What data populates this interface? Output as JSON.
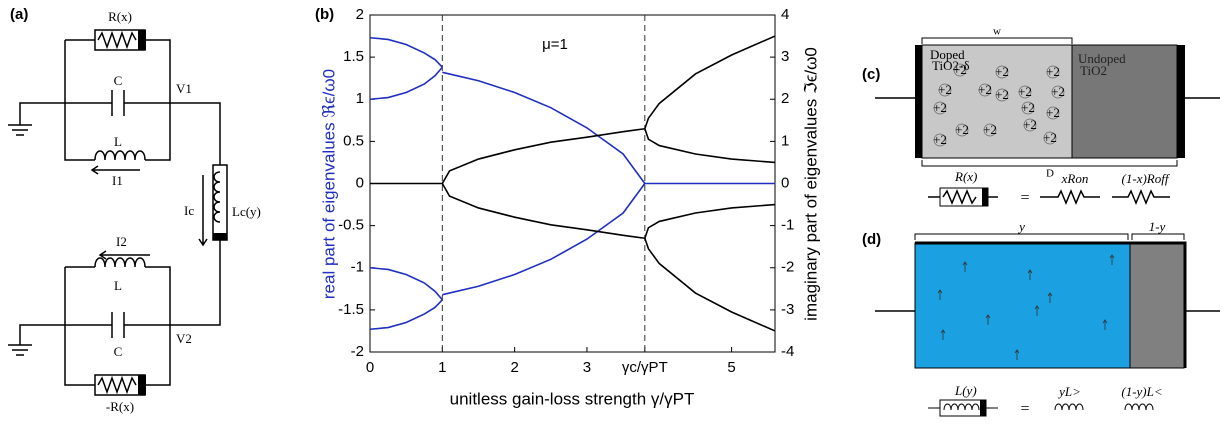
{
  "chart_data": {
    "type": "line",
    "panel_label": "(b)",
    "annotation": "μ=1",
    "xlabel": "unitless gain-loss strength γ/γPT",
    "ylabel": "real part of eigenvalues ℜϵ/ω0",
    "y2label": "imaginary part of eigenvalues ℑϵ/ω0",
    "xlim": [
      0,
      5.6
    ],
    "ylim": [
      -2,
      2
    ],
    "y2lim": [
      -4,
      4
    ],
    "xticks": [
      0,
      1,
      2,
      3,
      {
        "value": 3.8,
        "label": "γc/γPT"
      },
      5
    ],
    "yticks": [
      -2,
      -1.5,
      -1,
      -0.5,
      0,
      0.5,
      1,
      1.5,
      2
    ],
    "y2ticks": [
      -4,
      -3,
      -2,
      -1,
      0,
      1,
      2,
      3,
      4
    ],
    "vlines": [
      1,
      3.8
    ],
    "series": [
      {
        "color": "#1f2fbf",
        "axis": "y",
        "x": [
          0,
          0.25,
          0.5,
          0.75,
          0.9,
          1
        ],
        "values": [
          1.73,
          1.71,
          1.65,
          1.55,
          1.47,
          1.38
        ]
      },
      {
        "color": "#1f2fbf",
        "axis": "y",
        "x": [
          0,
          0.25,
          0.5,
          0.75,
          0.9,
          1
        ],
        "values": [
          1,
          1.02,
          1.08,
          1.18,
          1.28,
          1.38
        ]
      },
      {
        "color": "#1f2fbf",
        "axis": "y",
        "x": [
          1,
          1.5,
          2,
          2.5,
          3,
          3.5,
          3.8
        ],
        "values": [
          1.32,
          1.22,
          1.08,
          0.9,
          0.66,
          0.35,
          0
        ]
      },
      {
        "color": "#1f2fbf",
        "axis": "y",
        "x": [
          0,
          0.25,
          0.5,
          0.75,
          0.9,
          1
        ],
        "values": [
          -1.73,
          -1.71,
          -1.65,
          -1.55,
          -1.47,
          -1.38
        ]
      },
      {
        "color": "#1f2fbf",
        "axis": "y",
        "x": [
          0,
          0.25,
          0.5,
          0.75,
          0.9,
          1
        ],
        "values": [
          -1,
          -1.02,
          -1.08,
          -1.18,
          -1.28,
          -1.38
        ]
      },
      {
        "color": "#1f2fbf",
        "axis": "y",
        "x": [
          1,
          1.5,
          2,
          2.5,
          3,
          3.5,
          3.8
        ],
        "values": [
          -1.32,
          -1.22,
          -1.08,
          -0.9,
          -0.66,
          -0.35,
          0
        ]
      },
      {
        "color": "#1f2fbf",
        "axis": "y",
        "x": [
          3.8,
          5.6
        ],
        "values": [
          0,
          0
        ]
      },
      {
        "color": "#000000",
        "axis": "y2",
        "x": [
          0,
          1
        ],
        "values": [
          0,
          0
        ]
      },
      {
        "color": "#000000",
        "axis": "y2",
        "x": [
          1,
          1.1,
          1.5,
          2,
          2.5,
          3,
          3.5,
          3.8
        ],
        "values": [
          0,
          0.3,
          0.58,
          0.8,
          0.98,
          1.1,
          1.23,
          1.3
        ]
      },
      {
        "color": "#000000",
        "axis": "y2",
        "x": [
          1,
          1.1,
          1.5,
          2,
          2.5,
          3,
          3.5,
          3.8
        ],
        "values": [
          0,
          -0.3,
          -0.58,
          -0.8,
          -0.98,
          -1.1,
          -1.23,
          -1.3
        ]
      },
      {
        "color": "#000000",
        "axis": "y2",
        "x": [
          3.8,
          3.85,
          4,
          4.5,
          5,
          5.6
        ],
        "values": [
          1.3,
          1.55,
          1.9,
          2.6,
          3.05,
          3.5
        ]
      },
      {
        "color": "#000000",
        "axis": "y2",
        "x": [
          3.8,
          3.85,
          4,
          4.5,
          5,
          5.6
        ],
        "values": [
          1.3,
          1.05,
          0.9,
          0.7,
          0.58,
          0.5
        ]
      },
      {
        "color": "#000000",
        "axis": "y2",
        "x": [
          3.8,
          3.85,
          4,
          4.5,
          5,
          5.6
        ],
        "values": [
          -1.3,
          -1.55,
          -1.9,
          -2.6,
          -3.05,
          -3.5
        ]
      },
      {
        "color": "#000000",
        "axis": "y2",
        "x": [
          3.8,
          3.85,
          4,
          4.5,
          5,
          5.6
        ],
        "values": [
          -1.3,
          -1.05,
          -0.9,
          -0.7,
          -0.58,
          -0.5
        ]
      }
    ]
  },
  "circuit": {
    "panel_label": "(a)",
    "r_top": "R(x)",
    "c_top": "C",
    "v1": "V1",
    "l_top": "L",
    "i1": "I1",
    "ic": "Ic",
    "lc": "Lc(y)",
    "i2": "I2",
    "l_bottom": "L",
    "c_bottom": "C",
    "v2": "V2",
    "r_bottom": "-R(x)"
  },
  "memristor": {
    "panel_label": "(c)",
    "w": "w",
    "doped": "Doped",
    "doped_formula": "TiO2-δ",
    "ion": "+2",
    "undoped": "Undoped",
    "undoped_formula": "TiO2",
    "d": "D",
    "r": "R(x)",
    "equals": "=",
    "r_on": "xRon",
    "r_off": "(1-x)Roff"
  },
  "meminductor": {
    "panel_label": "(d)",
    "y": "y",
    "one_minus_y": "1-y",
    "l": "L(y)",
    "equals": "=",
    "l_gt": "yL>",
    "l_lt": "(1-y)L<"
  }
}
